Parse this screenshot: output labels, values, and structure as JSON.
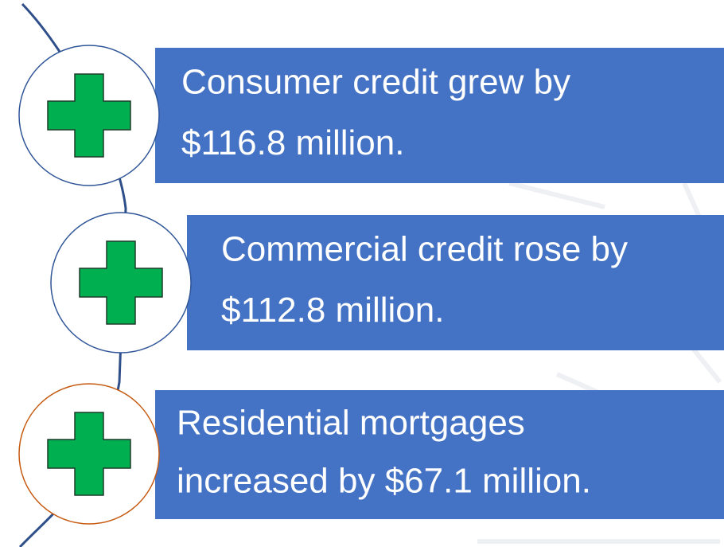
{
  "items": [
    {
      "lines": [
        "Consumer credit grew by",
        "$116.8 million."
      ]
    },
    {
      "lines": [
        "Commercial credit rose by",
        "$112.8 million."
      ]
    },
    {
      "lines": [
        "Residential mortgages",
        "increased by $67.1 million."
      ]
    }
  ]
}
